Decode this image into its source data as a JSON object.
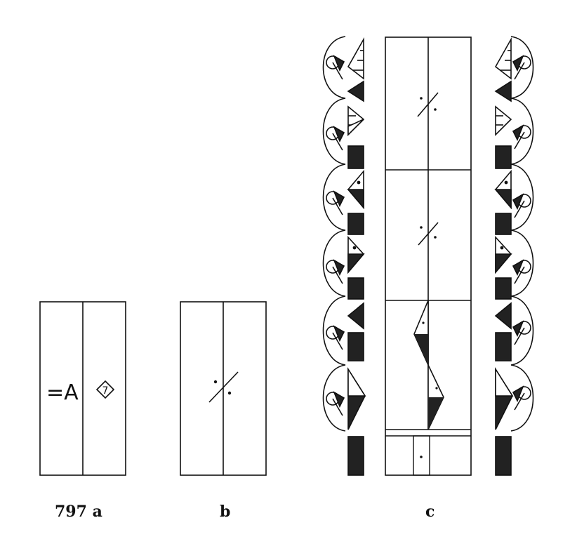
{
  "figure": {
    "stroke_color": "#111111",
    "fill_color": "#222222",
    "background": "#ffffff"
  },
  "staff_a": {
    "label_left": "=A",
    "label_right": "7"
  },
  "captions": {
    "a": "797 a",
    "b": "b",
    "c": "c"
  }
}
